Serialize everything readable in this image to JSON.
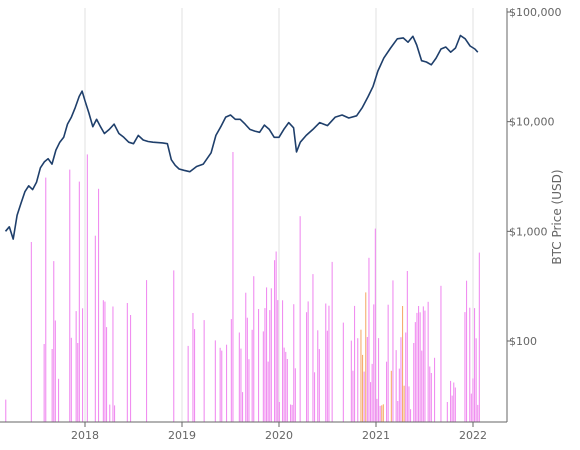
{
  "chart_data": {
    "type": "line",
    "title": "",
    "xlabel": "",
    "ylabel": "BTC Price (USD)",
    "y_scale": "log",
    "ylim": [
      20,
      100000
    ],
    "x_ticks": [
      {
        "label": "2018",
        "value": 2018.0
      },
      {
        "label": "2019",
        "value": 2019.0
      },
      {
        "label": "2020",
        "value": 2020.0
      },
      {
        "label": "2021",
        "value": 2021.0
      },
      {
        "label": "2022",
        "value": 2022.0
      }
    ],
    "y_ticks": [
      {
        "label": "$100",
        "value": 100
      },
      {
        "label": "$1,000",
        "value": 1000
      },
      {
        "label": "$10,000",
        "value": 10000
      },
      {
        "label": "$100,000",
        "value": 100000
      }
    ],
    "grid": {
      "vertical": true,
      "horizontal": false
    },
    "colors": {
      "price_line": "#1f3f6b",
      "bars_primary": "#ee82ee",
      "bars_secondary": "#f4a460",
      "gridline": "#e0e0e0",
      "axis": "#666666"
    },
    "price_series": {
      "x": [
        2017.18,
        2017.22,
        2017.26,
        2017.3,
        2017.34,
        2017.38,
        2017.42,
        2017.46,
        2017.5,
        2017.54,
        2017.58,
        2017.62,
        2017.66,
        2017.7,
        2017.74,
        2017.78,
        2017.82,
        2017.86,
        2017.9,
        2017.94,
        2017.97,
        2018.0,
        2018.04,
        2018.08,
        2018.12,
        2018.16,
        2018.2,
        2018.25,
        2018.3,
        2018.35,
        2018.4,
        2018.45,
        2018.5,
        2018.55,
        2018.6,
        2018.65,
        2018.7,
        2018.75,
        2018.8,
        2018.85,
        2018.89,
        2018.93,
        2018.97,
        2019.02,
        2019.08,
        2019.15,
        2019.22,
        2019.3,
        2019.35,
        2019.4,
        2019.45,
        2019.5,
        2019.55,
        2019.6,
        2019.65,
        2019.7,
        2019.75,
        2019.8,
        2019.85,
        2019.9,
        2019.95,
        2020.0,
        2020.05,
        2020.1,
        2020.15,
        2020.18,
        2020.22,
        2020.28,
        2020.35,
        2020.42,
        2020.5,
        2020.58,
        2020.65,
        2020.72,
        2020.8,
        2020.86,
        2020.92,
        2020.97,
        2021.02,
        2021.08,
        2021.15,
        2021.22,
        2021.28,
        2021.33,
        2021.38,
        2021.42,
        2021.47,
        2021.52,
        2021.57,
        2021.62,
        2021.67,
        2021.72,
        2021.77,
        2021.82,
        2021.87,
        2021.92,
        2021.97,
        2022.02,
        2022.05
      ],
      "values": [
        1000,
        1100,
        850,
        1400,
        1800,
        2300,
        2600,
        2400,
        2800,
        3800,
        4300,
        4600,
        4100,
        5500,
        6500,
        7200,
        9500,
        11000,
        13500,
        17000,
        19000,
        15500,
        12000,
        9000,
        10500,
        9000,
        7800,
        8500,
        9500,
        7800,
        7200,
        6500,
        6300,
        7500,
        6800,
        6600,
        6500,
        6450,
        6400,
        6300,
        4500,
        4000,
        3700,
        3600,
        3500,
        3900,
        4100,
        5200,
        7500,
        9000,
        11000,
        11500,
        10500,
        10500,
        9500,
        8500,
        8200,
        8000,
        9300,
        8500,
        7200,
        7200,
        8500,
        9800,
        8800,
        5300,
        6500,
        7500,
        8500,
        9800,
        9200,
        11000,
        11500,
        10800,
        11300,
        13500,
        17000,
        21000,
        29000,
        38000,
        47000,
        57000,
        58000,
        53000,
        60000,
        50000,
        36000,
        35000,
        33000,
        38000,
        46000,
        48000,
        43000,
        47000,
        61000,
        57000,
        49000,
        46000,
        43000
      ]
    }
  }
}
